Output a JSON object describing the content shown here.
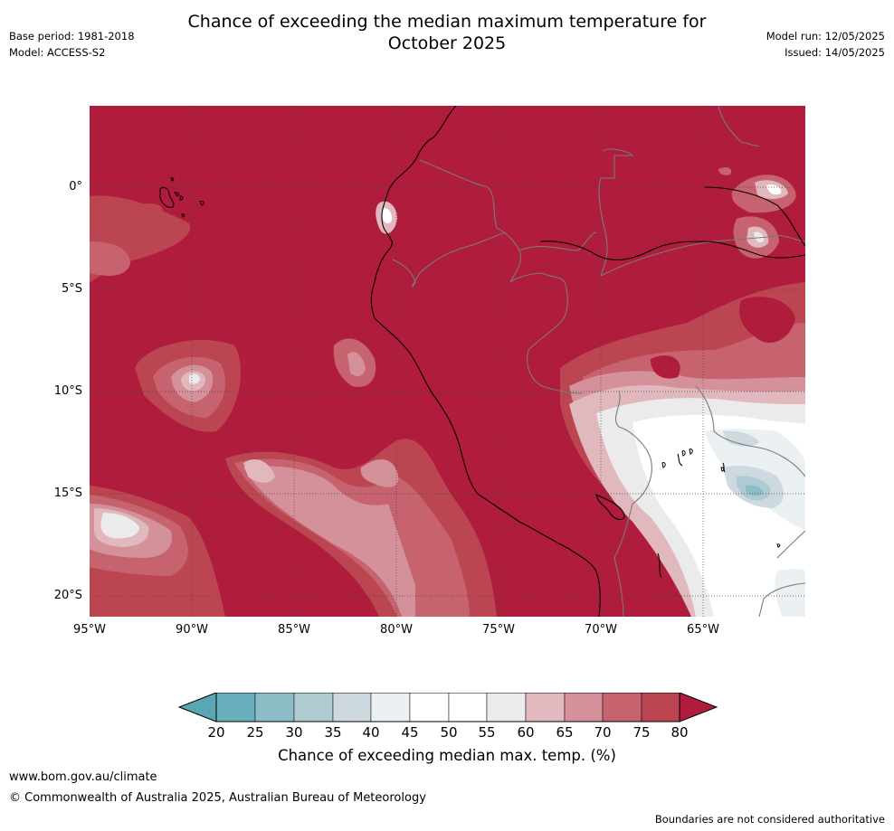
{
  "header": {
    "title_line1": "Chance of exceeding the median maximum temperature for",
    "title_line2": "October 2025",
    "base_period": "Base period: 1981-2018",
    "model": "Model: ACCESS-S2",
    "model_run": "Model run: 12/05/2025",
    "issued": "Issued: 14/05/2025"
  },
  "map": {
    "lat_labels": [
      "0°",
      "5°S",
      "10°S",
      "15°S",
      "20°S"
    ],
    "lon_labels": [
      "95°W",
      "90°W",
      "85°W",
      "80°W",
      "75°W",
      "70°W",
      "65°W"
    ],
    "region": "Western South America and eastern Pacific",
    "dominant_category": "80+"
  },
  "colorbar": {
    "ticks": [
      "20",
      "25",
      "30",
      "35",
      "40",
      "45",
      "50",
      "55",
      "60",
      "65",
      "70",
      "75",
      "80"
    ],
    "label": "Chance of exceeding median max. temp. (%)",
    "colors": [
      "#5aa6b3",
      "#6aafbc",
      "#8cbcc5",
      "#aecbd2",
      "#cdd9de",
      "#ebf0f2",
      "#ffffff",
      "#ffffff",
      "#ebebeb",
      "#e0b8bd",
      "#d4919a",
      "#c6636f",
      "#bb4652",
      "#b01c3b"
    ]
  },
  "footer": {
    "url": "www.bom.gov.au/climate",
    "copyright": "© Commonwealth of Australia 2025, Australian Bureau of Meteorology",
    "disclaimer": "Boundaries are not considered authoritative"
  }
}
